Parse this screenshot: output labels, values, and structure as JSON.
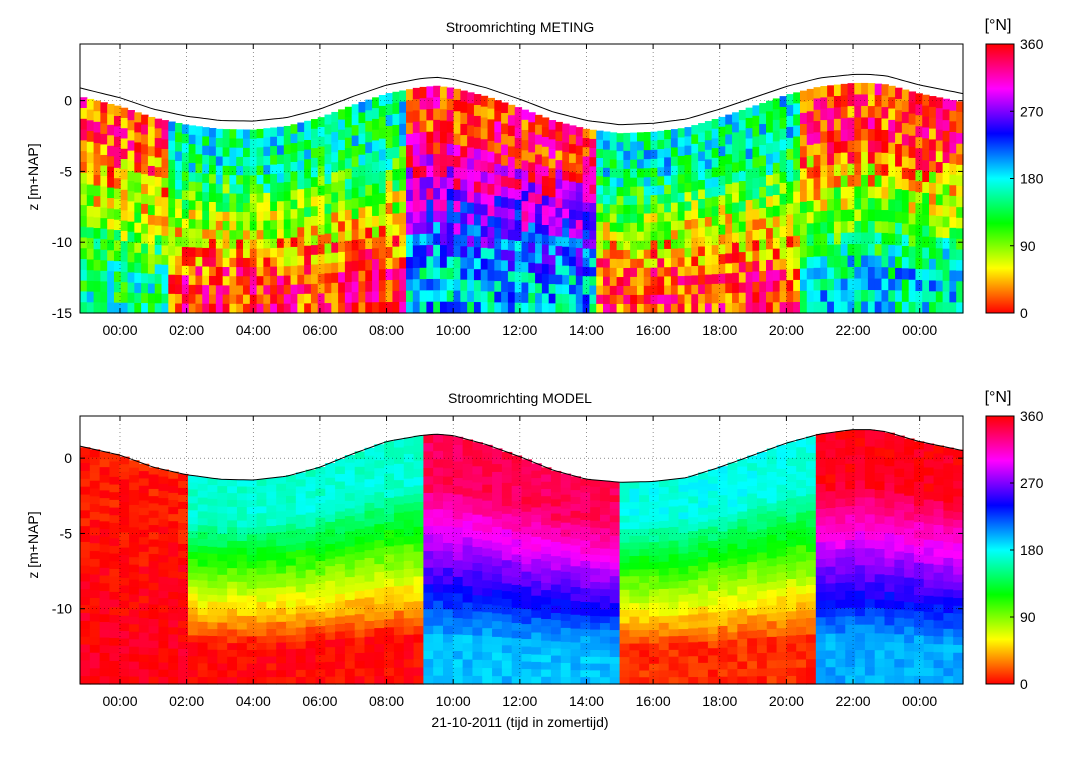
{
  "figure": {
    "shared_xlabel": "21-10-2011 (tijd in zomertijd)"
  },
  "chart_data": [
    {
      "type": "heatmap",
      "title": "Stroomrichting METING",
      "xlabel": "",
      "ylabel": "z [m+NAP]",
      "x_ticks": [
        "00:00",
        "02:00",
        "04:00",
        "06:00",
        "08:00",
        "10:00",
        "12:00",
        "14:00",
        "16:00",
        "18:00",
        "20:00",
        "22:00",
        "00:00"
      ],
      "x_tick_hours": [
        0,
        2,
        4,
        6,
        8,
        10,
        12,
        14,
        16,
        18,
        20,
        22,
        24
      ],
      "xlim_hours": [
        -1.2,
        25.3
      ],
      "y_ticks": [
        0,
        -5,
        -10,
        -15
      ],
      "ylim": [
        -15,
        4
      ],
      "grid": true,
      "colorbar": {
        "unit": "[°N]",
        "range": [
          0,
          360
        ],
        "ticks": [
          360,
          270,
          180,
          90,
          0
        ],
        "colormap": "hsv"
      },
      "water_level": {
        "x_hours": [
          -1.2,
          0,
          1,
          2,
          3,
          4,
          5,
          6,
          7,
          8,
          9,
          9.5,
          10,
          11,
          12,
          13,
          14,
          15,
          16,
          17,
          18,
          19,
          20,
          21,
          22,
          22.5,
          23,
          24,
          25.3
        ],
        "z": [
          0.9,
          0.2,
          -0.6,
          -1.1,
          -1.4,
          -1.45,
          -1.2,
          -0.6,
          0.3,
          1.1,
          1.55,
          1.65,
          1.5,
          0.9,
          0.1,
          -0.8,
          -1.4,
          -1.7,
          -1.6,
          -1.3,
          -0.6,
          0.2,
          1.0,
          1.6,
          1.85,
          1.85,
          1.75,
          1.1,
          0.5
        ]
      },
      "direction_field": {
        "pattern": "measured, noisy",
        "phases": [
          {
            "from_hour": -1.2,
            "to_hour": 1.5,
            "upper_deg": 10,
            "lower_deg": 150
          },
          {
            "from_hour": 1.5,
            "to_hour": 8.5,
            "upper_deg": 160,
            "lower_deg": 0
          },
          {
            "from_hour": 8.5,
            "to_hour": 14.2,
            "upper_deg": 355,
            "lower_deg": 190
          },
          {
            "from_hour": 14.2,
            "to_hour": 20.5,
            "upper_deg": 165,
            "lower_deg": 5
          },
          {
            "from_hour": 20.5,
            "to_hour": 25.3,
            "upper_deg": 0,
            "lower_deg": 175
          }
        ]
      }
    },
    {
      "type": "heatmap",
      "title": "Stroomrichting MODEL",
      "xlabel": "21-10-2011 (tijd in zomertijd)",
      "ylabel": "z [m+NAP]",
      "x_ticks": [
        "00:00",
        "02:00",
        "04:00",
        "06:00",
        "08:00",
        "10:00",
        "12:00",
        "14:00",
        "16:00",
        "18:00",
        "20:00",
        "22:00",
        "00:00"
      ],
      "x_tick_hours": [
        0,
        2,
        4,
        6,
        8,
        10,
        12,
        14,
        16,
        18,
        20,
        22,
        24
      ],
      "xlim_hours": [
        -1.2,
        25.3
      ],
      "y_ticks": [
        0,
        -5,
        -10
      ],
      "ylim": [
        -15,
        2.8
      ],
      "grid": true,
      "colorbar": {
        "unit": "[°N]",
        "range": [
          0,
          360
        ],
        "ticks": [
          360,
          270,
          180,
          90,
          0
        ],
        "colormap": "hsv"
      },
      "water_level": {
        "x_hours": [
          -1.2,
          0,
          1,
          2,
          3,
          4,
          5,
          6,
          7,
          8,
          9,
          9.5,
          10,
          11,
          12,
          13,
          14,
          15,
          16,
          17,
          18,
          19,
          20,
          21,
          22,
          22.5,
          23,
          24,
          25.3
        ],
        "z": [
          0.8,
          0.2,
          -0.6,
          -1.1,
          -1.4,
          -1.45,
          -1.2,
          -0.6,
          0.3,
          1.1,
          1.5,
          1.6,
          1.5,
          0.9,
          0.1,
          -0.8,
          -1.4,
          -1.6,
          -1.55,
          -1.3,
          -0.6,
          0.2,
          1.0,
          1.6,
          1.9,
          1.9,
          1.75,
          1.1,
          0.5
        ]
      },
      "direction_field": {
        "pattern": "model, smooth",
        "phases": [
          {
            "from_hour": -1.2,
            "to_hour": 2.0,
            "upper_deg": 5,
            "lower_deg": 355
          },
          {
            "from_hour": 2.0,
            "to_hour": 9.0,
            "upper_deg": 170,
            "lower_deg": 0
          },
          {
            "from_hour": 9.0,
            "to_hour": 15.0,
            "upper_deg": 340,
            "lower_deg": 195
          },
          {
            "from_hour": 15.0,
            "to_hour": 21.0,
            "upper_deg": 175,
            "lower_deg": 10
          },
          {
            "from_hour": 21.0,
            "to_hour": 25.3,
            "upper_deg": 355,
            "lower_deg": 200
          }
        ]
      }
    }
  ]
}
